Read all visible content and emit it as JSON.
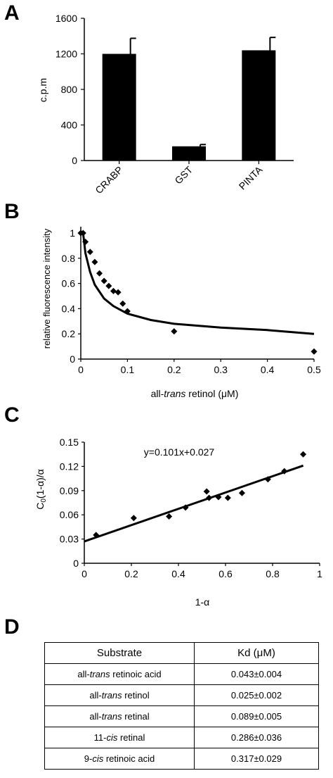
{
  "panels": {
    "a": "A",
    "b": "B",
    "c": "C",
    "d": "D"
  },
  "chart_data": [
    {
      "type": "bar",
      "categories": [
        "CRABP",
        "GST",
        "PINTA"
      ],
      "values": [
        1200,
        160,
        1240
      ],
      "errors": [
        175,
        20,
        145
      ],
      "ylabel": "c.p.m",
      "ylim": [
        0,
        1600
      ],
      "yticks": [
        0,
        400,
        800,
        1200,
        1600
      ],
      "bar_color": "#000000"
    },
    {
      "type": "scatter",
      "ylabel": "relative fluorescence intensity",
      "xlabel_parts": [
        "all-",
        "trans",
        " retinol (μM)"
      ],
      "xlim": [
        0,
        0.5
      ],
      "ylim": [
        0,
        1.05
      ],
      "xticks": [
        "0",
        "0.1",
        "0.2",
        "0.3",
        "0.4",
        "0.5"
      ],
      "yticks": [
        "0",
        "0.2",
        "0.4",
        "0.6",
        "0.8",
        "1"
      ],
      "points": [
        [
          0.0,
          1.0
        ],
        [
          0.005,
          1.0
        ],
        [
          0.01,
          0.93
        ],
        [
          0.02,
          0.85
        ],
        [
          0.03,
          0.77
        ],
        [
          0.04,
          0.68
        ],
        [
          0.05,
          0.62
        ],
        [
          0.06,
          0.58
        ],
        [
          0.07,
          0.54
        ],
        [
          0.08,
          0.53
        ],
        [
          0.09,
          0.44
        ],
        [
          0.1,
          0.38
        ],
        [
          0.2,
          0.22
        ],
        [
          0.5,
          0.06
        ]
      ],
      "fit_line": [
        [
          0.005,
          1.0
        ],
        [
          0.01,
          0.84
        ],
        [
          0.02,
          0.69
        ],
        [
          0.03,
          0.59
        ],
        [
          0.05,
          0.48
        ],
        [
          0.07,
          0.42
        ],
        [
          0.1,
          0.36
        ],
        [
          0.15,
          0.31
        ],
        [
          0.2,
          0.28
        ],
        [
          0.3,
          0.25
        ],
        [
          0.4,
          0.23
        ],
        [
          0.5,
          0.2
        ]
      ],
      "marker_color": "#000000"
    },
    {
      "type": "scatter",
      "xlabel": "1-α",
      "ylabel_parts": [
        "C",
        "0",
        "(1-α)/α"
      ],
      "annotation": "y=0.101x+0.027",
      "xlim": [
        0,
        1
      ],
      "ylim": [
        0,
        0.15
      ],
      "xticks": [
        "0",
        "0.2",
        "0.4",
        "0.6",
        "0.8",
        "1"
      ],
      "yticks": [
        "0",
        "0.03",
        "0.06",
        "0.09",
        "0.12",
        "0.15"
      ],
      "points": [
        [
          0.05,
          0.035
        ],
        [
          0.21,
          0.056
        ],
        [
          0.36,
          0.058
        ],
        [
          0.43,
          0.069
        ],
        [
          0.52,
          0.089
        ],
        [
          0.53,
          0.081
        ],
        [
          0.57,
          0.082
        ],
        [
          0.61,
          0.081
        ],
        [
          0.67,
          0.087
        ],
        [
          0.78,
          0.104
        ],
        [
          0.85,
          0.114
        ],
        [
          0.93,
          0.135
        ]
      ],
      "fit_line": [
        [
          0.0,
          0.027
        ],
        [
          0.93,
          0.121
        ]
      ],
      "marker_color": "#000000"
    },
    {
      "type": "table",
      "columns": [
        "Substrate",
        "Kd (μM)"
      ],
      "rows": [
        {
          "substrate": [
            "all-",
            "trans",
            " retinoic acid"
          ],
          "kd": "0.043±0.004"
        },
        {
          "substrate": [
            "all-",
            "trans",
            " retinol"
          ],
          "kd": "0.025±0.002"
        },
        {
          "substrate": [
            "all-",
            "trans",
            " retinal"
          ],
          "kd": "0.089±0.005"
        },
        {
          "substrate": [
            "11-",
            "cis",
            " retinal"
          ],
          "kd": "0.286±0.036"
        },
        {
          "substrate": [
            "9-",
            "cis",
            " retinoic acid"
          ],
          "kd": "0.317±0.029"
        }
      ]
    }
  ]
}
